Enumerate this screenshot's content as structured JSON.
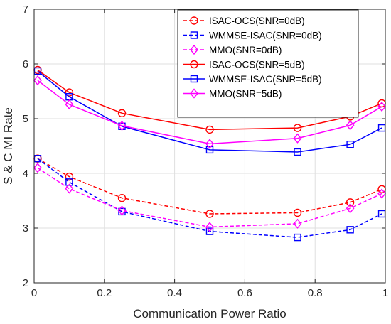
{
  "chart_data": {
    "type": "line",
    "title": "",
    "xlabel": "Communication Power Ratio",
    "ylabel": "S & C MI Rate",
    "xlim": [
      0,
      1
    ],
    "ylim": [
      2,
      7
    ],
    "x_ticks": [
      0,
      0.2,
      0.4,
      0.6,
      0.8,
      1
    ],
    "x_tick_labels": [
      "0",
      "0.2",
      "0.4",
      "0.6",
      "0.8",
      "1"
    ],
    "y_ticks": [
      2,
      3,
      4,
      5,
      6,
      7
    ],
    "y_tick_labels": [
      "2",
      "3",
      "4",
      "5",
      "6",
      "7"
    ],
    "grid": true,
    "legend_position": "top-right",
    "x": [
      0.01,
      0.1,
      0.25,
      0.5,
      0.75,
      0.9,
      0.99
    ],
    "series": [
      {
        "name": "ISAC-OCS(SNR=0dB)",
        "color": "#ff0000",
        "dash": true,
        "marker": "circle",
        "values": [
          4.27,
          3.94,
          3.55,
          3.26,
          3.28,
          3.47,
          3.71
        ]
      },
      {
        "name": "WMMSE-ISAC(SNR=0dB)",
        "color": "#0000ff",
        "dash": true,
        "marker": "square",
        "values": [
          4.27,
          3.84,
          3.3,
          2.94,
          2.83,
          2.97,
          3.26
        ]
      },
      {
        "name": "MMO(SNR=0dB)",
        "color": "#ff00ff",
        "dash": true,
        "marker": "diamond",
        "values": [
          4.1,
          3.72,
          3.32,
          3.02,
          3.08,
          3.36,
          3.63
        ]
      },
      {
        "name": "ISAC-OCS(SNR=5dB)",
        "color": "#ff0000",
        "dash": false,
        "marker": "circle",
        "values": [
          5.89,
          5.48,
          5.1,
          4.8,
          4.83,
          5.04,
          5.28
        ]
      },
      {
        "name": "WMMSE-ISAC(SNR=5dB)",
        "color": "#0000ff",
        "dash": false,
        "marker": "square",
        "values": [
          5.87,
          5.4,
          4.86,
          4.43,
          4.39,
          4.53,
          4.83
        ]
      },
      {
        "name": "MMO(SNR=5dB)",
        "color": "#ff00ff",
        "dash": false,
        "marker": "diamond",
        "values": [
          5.7,
          5.26,
          4.87,
          4.54,
          4.64,
          4.88,
          5.22
        ]
      }
    ]
  }
}
